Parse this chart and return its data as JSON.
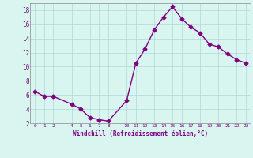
{
  "x": [
    0,
    1,
    2,
    4,
    5,
    6,
    7,
    8,
    10,
    11,
    12,
    13,
    14,
    15,
    16,
    17,
    18,
    19,
    20,
    21,
    22,
    23
  ],
  "y": [
    6.5,
    5.8,
    5.8,
    4.7,
    4.0,
    2.8,
    2.5,
    2.3,
    5.2,
    10.5,
    12.5,
    15.2,
    17.0,
    18.5,
    16.8,
    15.6,
    14.8,
    13.2,
    12.8,
    11.8,
    11.0,
    10.5
  ],
  "line_color": "#800080",
  "marker": "D",
  "marker_size": 2.5,
  "background_color": "#d8f5f0",
  "grid_color": "#b0d8d8",
  "xlabel": "Windchill (Refroidissement éolien,°C)",
  "xlabel_color": "#800080",
  "tick_color": "#800080",
  "ylim": [
    2,
    19
  ],
  "xlim": [
    -0.5,
    23.5
  ],
  "yticks": [
    2,
    4,
    6,
    8,
    10,
    12,
    14,
    16,
    18
  ],
  "xticks": [
    0,
    1,
    2,
    4,
    5,
    6,
    7,
    8,
    10,
    11,
    12,
    13,
    14,
    15,
    16,
    17,
    18,
    19,
    20,
    21,
    22,
    23
  ],
  "xtick_labels": [
    "0",
    "1",
    "2",
    "4",
    "5",
    "6",
    "7",
    "8",
    "10",
    "11",
    "12",
    "13",
    "14",
    "15",
    "16",
    "17",
    "18",
    "19",
    "20",
    "21",
    "22",
    "23"
  ],
  "line_width": 1.0
}
